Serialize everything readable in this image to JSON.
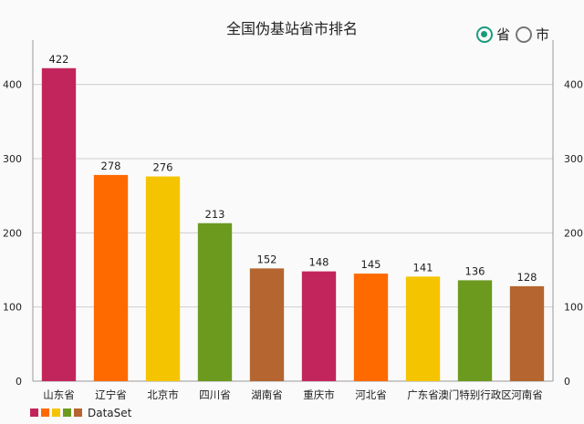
{
  "header": {
    "title": "全国伪基站省市排名"
  },
  "filter": {
    "options": [
      {
        "label": "省",
        "checked": true
      },
      {
        "label": "市",
        "checked": false
      }
    ]
  },
  "chart_data": {
    "type": "bar",
    "title": "全国伪基站省市排名",
    "categories": [
      "山东省",
      "辽宁省",
      "北京市",
      "四川省",
      "湖南省",
      "重庆市",
      "河北省",
      "广东省",
      "澳门特别行政区",
      "河南省"
    ],
    "values": [
      422,
      278,
      276,
      213,
      152,
      148,
      145,
      141,
      136,
      128
    ],
    "colors": [
      "#c2255c",
      "#ff6a00",
      "#f5c400",
      "#6b9a1f",
      "#b5652f",
      "#c2255c",
      "#ff6a00",
      "#f5c400",
      "#6b9a1f",
      "#b5652f"
    ],
    "ylim": [
      0,
      450
    ],
    "yticks": [
      0,
      100,
      200,
      300,
      400
    ],
    "grid": true,
    "legend": {
      "label": "DataSet",
      "swatch_colors": [
        "#c2255c",
        "#ff6a00",
        "#f5c400",
        "#6b9a1f",
        "#b5652f"
      ],
      "placement": "bottom-left"
    }
  }
}
